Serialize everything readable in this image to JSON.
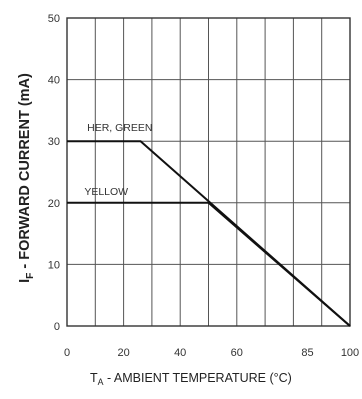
{
  "chart_data": {
    "type": "line",
    "title": "",
    "xlabel": {
      "symbol": "T",
      "sub": "A",
      "text": " - AMBIENT TEMPERATURE (°C)"
    },
    "ylabel": {
      "symbol": "I",
      "sub": "F",
      "text": " - FORWARD CURRENT (mA)"
    },
    "x_ticks": [
      {
        "value": 0,
        "label": "0"
      },
      {
        "value": 20,
        "label": "20"
      },
      {
        "value": 40,
        "label": "40"
      },
      {
        "value": 60,
        "label": "60"
      },
      {
        "value": 85,
        "label": "85"
      },
      {
        "value": 100,
        "label": "100"
      }
    ],
    "y_ticks": [
      {
        "value": 0,
        "label": "0"
      },
      {
        "value": 10,
        "label": "10"
      },
      {
        "value": 20,
        "label": "20"
      },
      {
        "value": 30,
        "label": "30"
      },
      {
        "value": 40,
        "label": "40"
      },
      {
        "value": 50,
        "label": "50"
      }
    ],
    "xlim": [
      0,
      100
    ],
    "ylim": [
      0,
      50
    ],
    "grid": true,
    "series": [
      {
        "name": "HER, GREEN",
        "x": [
          0,
          26,
          100
        ],
        "y": [
          30,
          30,
          0
        ]
      },
      {
        "name": "YELLOW",
        "x": [
          0,
          50,
          100
        ],
        "y": [
          20,
          20,
          0
        ]
      }
    ],
    "colors": {
      "grid": "#555555",
      "series": "#111111"
    }
  }
}
